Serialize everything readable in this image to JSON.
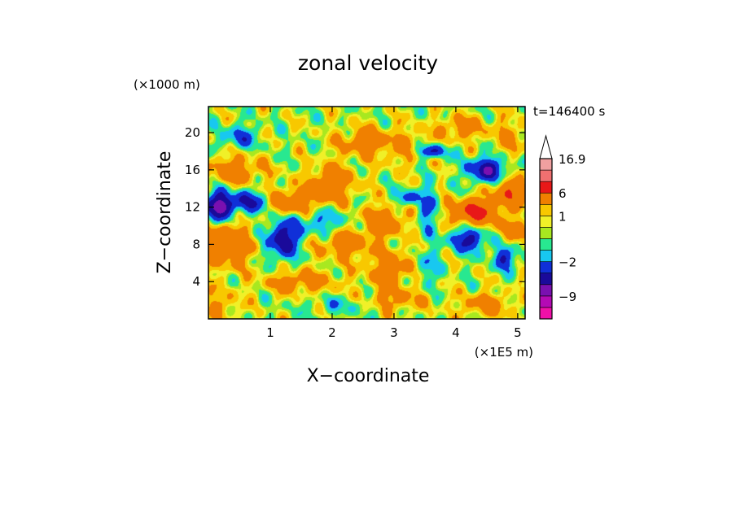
{
  "chart_data": {
    "type": "heatmap",
    "title": "zonal velocity",
    "xlabel": "X−coordinate",
    "ylabel": "Z−coordinate",
    "x_unit": "(×1E5 m)",
    "y_unit": "(×1000 m)",
    "time_label": "t=146400 s",
    "xlim": [
      0,
      5.12
    ],
    "ylim": [
      0,
      22.8
    ],
    "x_ticks": [
      1,
      2,
      3,
      4,
      5
    ],
    "x_tick_labels": [
      "1",
      "2",
      "3",
      "4",
      "5"
    ],
    "y_ticks": [
      4,
      8,
      12,
      16,
      20
    ],
    "y_tick_labels": [
      "4",
      "8",
      "12",
      "16",
      "20"
    ],
    "colorbar": {
      "max_label": "16.9",
      "labels": [
        {
          "value": 16.9,
          "text": "16.9"
        },
        {
          "value": 6,
          "text": "6"
        },
        {
          "value": 1,
          "text": "1"
        },
        {
          "value": -2,
          "text": "−2"
        },
        {
          "value": -9,
          "text": "−9"
        }
      ],
      "levels": [
        {
          "from": -20,
          "to": -12,
          "color": "#f010a8"
        },
        {
          "from": -12,
          "to": -9,
          "color": "#b40ab4"
        },
        {
          "from": -9,
          "to": -6,
          "color": "#7a10b0"
        },
        {
          "from": -6,
          "to": -4,
          "color": "#1a0a9a"
        },
        {
          "from": -4,
          "to": -2,
          "color": "#1030d8"
        },
        {
          "from": -2,
          "to": -1,
          "color": "#18c8f0"
        },
        {
          "from": -1,
          "to": 0,
          "color": "#28e890"
        },
        {
          "from": 0,
          "to": 0.5,
          "color": "#a8e820"
        },
        {
          "from": 0.5,
          "to": 1,
          "color": "#f0f028"
        },
        {
          "from": 1,
          "to": 2,
          "color": "#f8c800"
        },
        {
          "from": 2,
          "to": 6,
          "color": "#f08000"
        },
        {
          "from": 6,
          "to": 9,
          "color": "#e81818"
        },
        {
          "from": 9,
          "to": 12,
          "color": "#f07070"
        },
        {
          "from": 12,
          "to": 16.9,
          "color": "#f0a0a0"
        },
        {
          "from": 16.9,
          "to": 25,
          "color": "#ffffff"
        }
      ]
    },
    "features": [
      {
        "x": 0.15,
        "z": 12.0,
        "u": -7,
        "sx": 0.2,
        "sz": 1.6
      },
      {
        "x": 0.6,
        "z": 12.5,
        "u": -5,
        "sx": 0.35,
        "sz": 1.2
      },
      {
        "x": 0.25,
        "z": 8.0,
        "u": 4,
        "sx": 0.45,
        "sz": 2.5
      },
      {
        "x": 1.2,
        "z": 8.5,
        "u": -6,
        "sx": 0.25,
        "sz": 2.0
      },
      {
        "x": 1.35,
        "z": 12.5,
        "u": 4,
        "sx": 0.4,
        "sz": 1.5
      },
      {
        "x": 0.4,
        "z": 16.0,
        "u": 3,
        "sx": 0.5,
        "sz": 1.5
      },
      {
        "x": 0.5,
        "z": 19.5,
        "u": -3,
        "sx": 0.3,
        "sz": 1.2
      },
      {
        "x": 0.2,
        "z": 1.5,
        "u": 2,
        "sx": 0.3,
        "sz": 1.5
      },
      {
        "x": 2.0,
        "z": 14.5,
        "u": 4,
        "sx": 0.35,
        "sz": 2.0
      },
      {
        "x": 1.8,
        "z": 10.5,
        "u": -2.5,
        "sx": 0.5,
        "sz": 1.5
      },
      {
        "x": 2.2,
        "z": 8.0,
        "u": 3,
        "sx": 0.45,
        "sz": 1.5
      },
      {
        "x": 1.5,
        "z": 4.0,
        "u": 3,
        "sx": 0.55,
        "sz": 1.2
      },
      {
        "x": 2.2,
        "z": 1.5,
        "u": -1.5,
        "sx": 0.6,
        "sz": 1.0
      },
      {
        "x": 2.5,
        "z": 19.0,
        "u": 3,
        "sx": 0.4,
        "sz": 1.5
      },
      {
        "x": 2.8,
        "z": 10.5,
        "u": 4,
        "sx": 0.35,
        "sz": 1.5
      },
      {
        "x": 3.0,
        "z": 5.5,
        "u": 3,
        "sx": 0.45,
        "sz": 2.0
      },
      {
        "x": 3.0,
        "z": 2.0,
        "u": 2.5,
        "sx": 0.5,
        "sz": 1.2
      },
      {
        "x": 3.2,
        "z": 18.5,
        "u": 2,
        "sx": 0.4,
        "sz": 2.0
      },
      {
        "x": 3.2,
        "z": 13.0,
        "u": -4,
        "sx": 0.15,
        "sz": 0.8
      },
      {
        "x": 3.55,
        "z": 12.0,
        "u": -3,
        "sx": 0.15,
        "sz": 2.5
      },
      {
        "x": 3.5,
        "z": 5.5,
        "u": -2.5,
        "sx": 0.25,
        "sz": 2.0
      },
      {
        "x": 3.6,
        "z": 18.0,
        "u": -5,
        "sx": 0.25,
        "sz": 0.7
      },
      {
        "x": 4.3,
        "z": 11.5,
        "u": 7,
        "sx": 0.35,
        "sz": 1.3
      },
      {
        "x": 4.5,
        "z": 16.0,
        "u": -6,
        "sx": 0.3,
        "sz": 1.3
      },
      {
        "x": 4.2,
        "z": 8.5,
        "u": -5,
        "sx": 0.3,
        "sz": 1.2
      },
      {
        "x": 4.8,
        "z": 6.5,
        "u": -4,
        "sx": 0.2,
        "sz": 1.2
      },
      {
        "x": 4.9,
        "z": 9.5,
        "u": 3,
        "sx": 0.25,
        "sz": 1.2
      },
      {
        "x": 4.9,
        "z": 13.5,
        "u": 5,
        "sx": 0.3,
        "sz": 1.5
      },
      {
        "x": 4.9,
        "z": 19.5,
        "u": 2,
        "sx": 0.3,
        "sz": 2.0
      },
      {
        "x": 4.5,
        "z": 1.5,
        "u": 3,
        "sx": 0.4,
        "sz": 1.2
      },
      {
        "x": 4.1,
        "z": 20.5,
        "u": 3,
        "sx": 0.35,
        "sz": 1.2
      }
    ]
  }
}
